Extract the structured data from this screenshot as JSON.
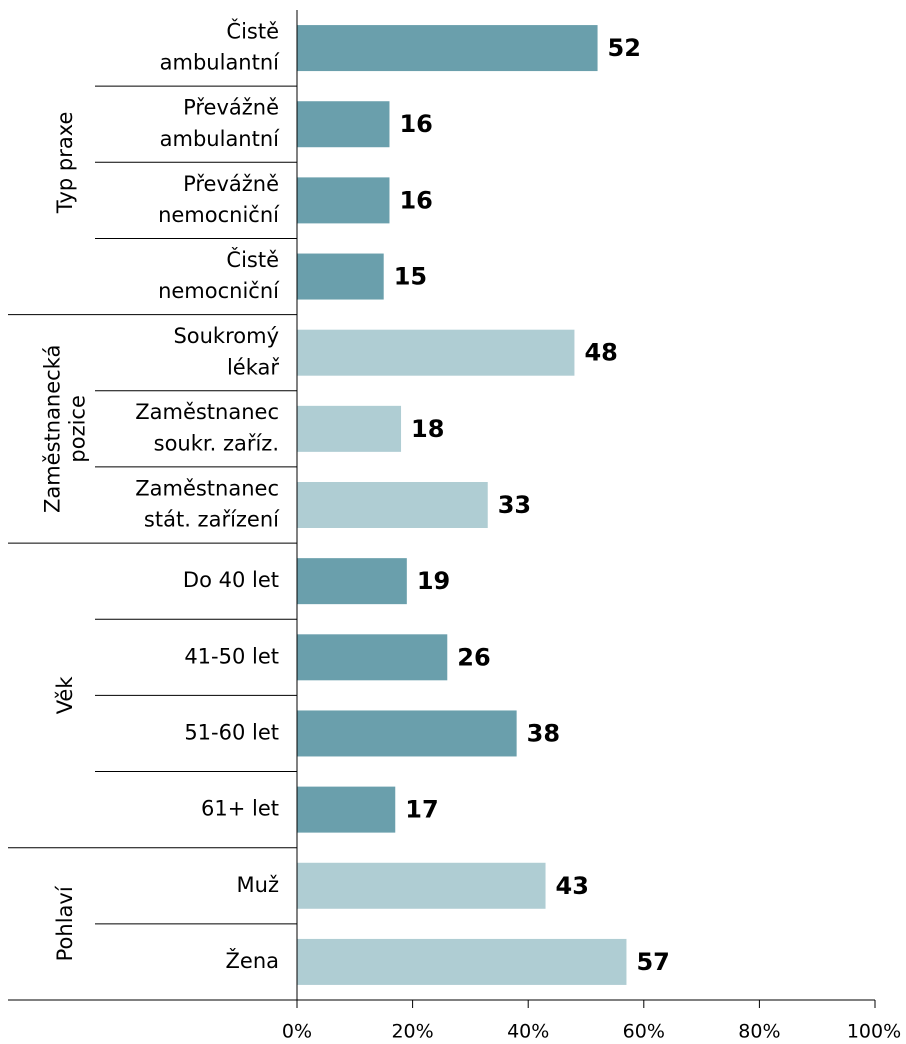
{
  "chart_data": {
    "type": "bar",
    "groups": [
      {
        "name": [
          "Typ praxe"
        ],
        "color": "#6a9fac",
        "categories": [
          [
            "Čistě",
            "ambulantní"
          ],
          [
            "Převážně",
            "ambulantní"
          ],
          [
            "Převážně",
            "nemocniční"
          ],
          [
            "Čistě",
            "nemocniční"
          ]
        ],
        "values": [
          52,
          16,
          16,
          15
        ]
      },
      {
        "name": [
          "Zaměstnanecká",
          "pozice"
        ],
        "color": "#afcdd3",
        "categories": [
          [
            "Soukromý",
            "lékař"
          ],
          [
            "Zaměstnanec",
            "soukr. zaříz."
          ],
          [
            "Zaměstnanec",
            "stát. zařízení"
          ]
        ],
        "values": [
          48,
          18,
          33
        ]
      },
      {
        "name": [
          "Věk"
        ],
        "color": "#6a9fac",
        "categories": [
          [
            "Do 40 let"
          ],
          [
            "41-50 let"
          ],
          [
            "51-60 let"
          ],
          [
            "61+ let"
          ]
        ],
        "values": [
          19,
          26,
          38,
          17
        ]
      },
      {
        "name": [
          "Pohlaví"
        ],
        "color": "#afcdd3",
        "categories": [
          [
            "Muž"
          ],
          [
            "Žena"
          ]
        ],
        "values": [
          43,
          57
        ]
      }
    ],
    "xlim": [
      0,
      100
    ],
    "xticks": [
      {
        "value": 0,
        "label": "0%"
      },
      {
        "value": 20,
        "label": "20%"
      },
      {
        "value": 40,
        "label": "40%"
      },
      {
        "value": 60,
        "label": "60%"
      },
      {
        "value": 80,
        "label": "80%"
      },
      {
        "value": 100,
        "label": "100%"
      }
    ]
  }
}
